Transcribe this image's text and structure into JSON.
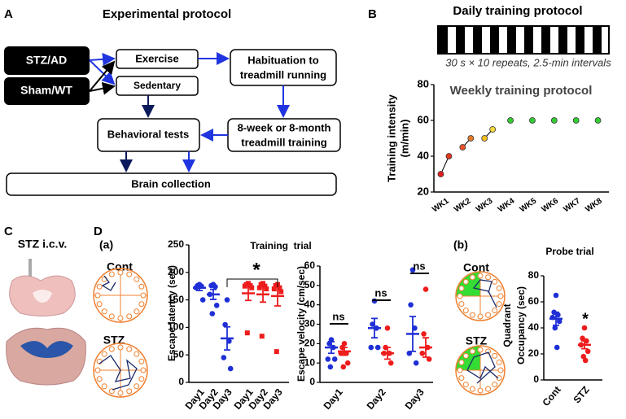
{
  "figure": {
    "panel_a": {
      "label": "A",
      "title": "Experimental protocol",
      "nodes": [
        "STZ/AD",
        "Sham/WT",
        "Exercise",
        "Sedentary",
        "Habituation to",
        "treadmill running",
        "8-week or 8-month",
        "treadmill training",
        "Behavioral tests",
        "Brain collection"
      ]
    },
    "panel_b": {
      "label": "B",
      "daily_title": "Daily training protocol",
      "daily_caption": "30 s × 10 repeats, 2.5-min intervals"
    },
    "panel_c": {
      "label": "C",
      "title": "STZ i.c.v."
    },
    "panel_d": {
      "label": "D",
      "sub_a": "(a)",
      "sub_b": "(b)",
      "training_title": "Training  trial",
      "maze_labels_a": [
        "Cont",
        "STZ"
      ],
      "maze_labels_b": [
        "Cont",
        "STZ"
      ]
    }
  },
  "chart_data": [
    {
      "type": "line",
      "title": "Weekly training protocol",
      "y_label": [
        "Training intensity",
        "(m/min)"
      ],
      "categories": [
        "WK1",
        "WK2",
        "WK3",
        "WK4",
        "WK5",
        "WK6",
        "WK7",
        "WK8"
      ],
      "series": [
        {
          "values": [
            30,
            45,
            50,
            60,
            60,
            60,
            60,
            60
          ],
          "colors": [
            "#e21e1e",
            "#e8542a",
            "#f5c020",
            "#33cc33",
            "#33cc33",
            "#33cc33",
            "#33cc33",
            "#33cc33"
          ]
        },
        {
          "values": [
            40,
            50,
            55,
            null,
            null,
            null,
            null,
            null
          ],
          "colors": [
            "#e2381e",
            "#e07a2a",
            "#f5d840",
            null,
            null,
            null,
            null,
            null
          ]
        }
      ],
      "ylim": [
        20,
        80
      ],
      "yticks": [
        20,
        40,
        60,
        80
      ]
    },
    {
      "type": "dot",
      "y_label": "Escape latency (sec)",
      "categories": [
        "Day1",
        "Day2",
        "Day3",
        "Day1",
        "Day2",
        "Day3"
      ],
      "series": [
        {
          "color": "#1f2fd6",
          "marker": "circle",
          "values": [
            [
              178,
              176,
              175,
              172,
              150
            ],
            [
              178,
              176,
              174,
              160,
              140,
              125
            ],
            [
              150,
              105,
              75,
              45,
              25
            ],
            null,
            null,
            null
          ],
          "means": [
            172,
            160,
            80,
            null,
            null,
            null
          ],
          "errors": [
            5,
            9,
            21,
            null,
            null,
            null
          ]
        },
        {
          "color": "#ee1c1c",
          "marker": "square",
          "values": [
            null,
            null,
            null,
            [
              180,
              178,
              176,
              175,
              172,
              90
            ],
            [
              180,
              178,
              175,
              172,
              170,
              84
            ],
            [
              178,
              176,
              172,
              170,
              165,
              56
            ]
          ],
          "means": [
            null,
            null,
            null,
            162,
            160,
            157
          ],
          "errors": [
            null,
            null,
            null,
            13,
            14,
            18
          ]
        }
      ],
      "ylim": [
        0,
        250
      ],
      "yticks": [
        0,
        50,
        100,
        150,
        200,
        250
      ],
      "annotations": [
        "*"
      ]
    },
    {
      "type": "dot",
      "y_label": "Escape velocity (cm/sec)",
      "categories": [
        "Day1",
        "Day2",
        "Day3"
      ],
      "series": [
        {
          "color": "#1f2fd6",
          "marker": "circle",
          "values": [
            [
              22,
              20,
              18,
              12,
              12,
              8
            ],
            [
              42,
              30,
              28,
              18,
              18
            ],
            [
              58,
              40,
              28,
              15,
              10
            ]
          ],
          "means": [
            18,
            28,
            25
          ],
          "errors": [
            3,
            5,
            9
          ]
        },
        {
          "color": "#ee1c1c",
          "marker": "circle",
          "values": [
            [
              20,
              18,
              15,
              15,
              10,
              8
            ],
            [
              28,
              18,
              15,
              15,
              10
            ],
            [
              48,
              25,
              18,
              15,
              12
            ]
          ],
          "means": [
            16,
            15,
            18
          ],
          "errors": [
            2,
            3,
            5
          ]
        }
      ],
      "ylim": [
        0,
        60
      ],
      "yticks": [
        0,
        10,
        20,
        30,
        40,
        50,
        60
      ],
      "annotations": [
        "ns",
        "ns",
        "ns"
      ]
    },
    {
      "type": "dot",
      "title": "Probe trial",
      "y_label": [
        "Quadrant",
        "Occupancy (sec)"
      ],
      "categories": [
        "Cont",
        "STZ"
      ],
      "series": [
        {
          "color": "#1f2fd6",
          "marker": "circle",
          "values": [
            [
              65,
              52,
              50,
              48,
              45,
              40,
              25
            ],
            null
          ],
          "means": [
            47,
            null
          ],
          "errors": [
            5,
            null
          ]
        },
        {
          "color": "#ee1c1c",
          "marker": "circle",
          "values": [
            null,
            [
              40,
              32,
              30,
              27,
              22,
              18,
              15
            ]
          ],
          "means": [
            null,
            27
          ],
          "errors": [
            null,
            3
          ]
        }
      ],
      "ylim": [
        0,
        80
      ],
      "yticks": [
        0,
        20,
        40,
        60,
        80
      ],
      "annotations": [
        "*"
      ]
    }
  ]
}
